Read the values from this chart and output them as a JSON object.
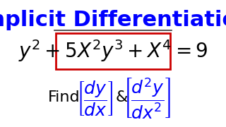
{
  "title": "Implicit Differentiation",
  "title_color": "#0000FF",
  "title_fontsize": 22,
  "equation": "$y^2 + 5X^2y^3 + X^4 = 9$",
  "equation_color": "#000000",
  "equation_fontsize": 20,
  "box_color": "#CC0000",
  "find_text": "Find",
  "find_color": "#000000",
  "find_fontsize": 16,
  "ampersand": "&",
  "deriv_color": "#0000FF",
  "deriv_fontsize": 18,
  "background_color": "#FFFFFF",
  "separator_color": "#333333"
}
